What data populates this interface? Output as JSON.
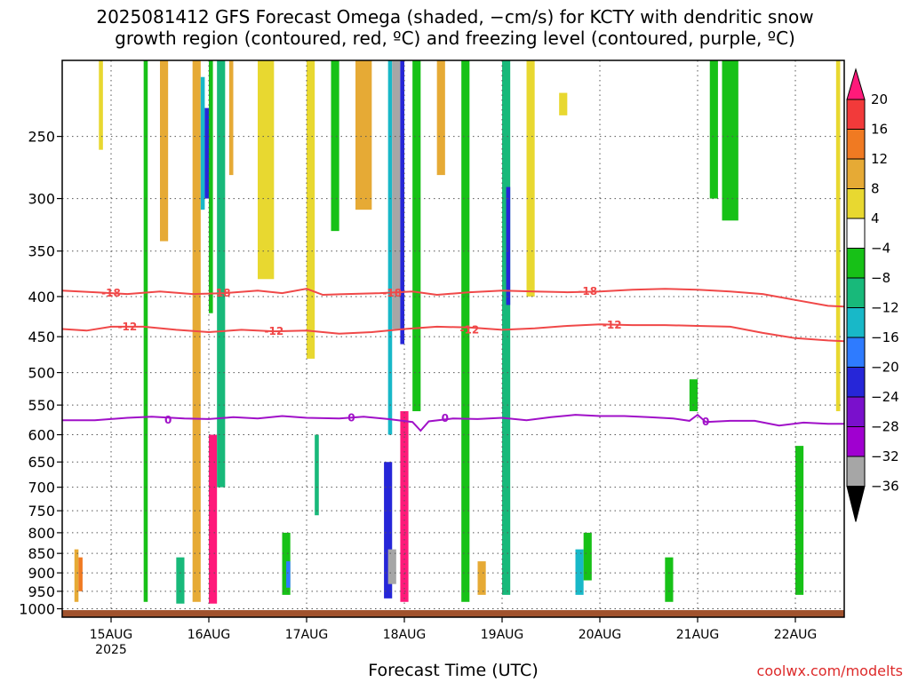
{
  "title": {
    "line1": "2025081412 GFS Forecast Omega (shaded, −cm/s) for KCTY with dendritic snow",
    "line2": "growth region (contoured, red, ºC) and freezing level (contoured, purple, ºC)"
  },
  "credit": "coolwx.com/modelts",
  "chart_data": {
    "type": "heatmap",
    "xlabel": "Forecast Time (UTC)",
    "ylabel": "",
    "x_ticks": [
      "15AUG",
      "16AUG",
      "17AUG",
      "18AUG",
      "19AUG",
      "20AUG",
      "21AUG",
      "22AUG"
    ],
    "x_year": "2025",
    "xlim_hours": [
      -12,
      180
    ],
    "y_ticks": [
      250,
      300,
      350,
      400,
      450,
      500,
      550,
      600,
      650,
      700,
      750,
      800,
      850,
      900,
      950,
      1000
    ],
    "ylim_hPa": [
      200,
      1025
    ],
    "grid": true,
    "colorbar": {
      "labels": [
        "20",
        "16",
        "12",
        "8",
        "4",
        "−4",
        "−8",
        "−12",
        "−16",
        "−20",
        "−24",
        "−28",
        "−32",
        "−36"
      ],
      "colors": [
        "#ff1a7a",
        "#f23a3a",
        "#f07a22",
        "#e6aa35",
        "#e8d830",
        "#ffffff",
        "#17c117",
        "#18b97a",
        "#18b8c8",
        "#2e7bff",
        "#2626d8",
        "#7a10cc",
        "#a000d0",
        "#a6a6a6",
        "#000000"
      ]
    },
    "contours": [
      {
        "label": "-18",
        "color": "#f04848",
        "label_positions": [
          [
            0,
            396
          ],
          [
            27,
            396
          ],
          [
            69,
            396
          ],
          [
            117,
            394
          ]
        ],
        "points": [
          [
            -12,
            393
          ],
          [
            -4,
            395
          ],
          [
            4,
            397
          ],
          [
            12,
            394
          ],
          [
            20,
            397
          ],
          [
            28,
            396
          ],
          [
            36,
            393
          ],
          [
            42,
            396
          ],
          [
            48,
            391
          ],
          [
            52,
            398
          ],
          [
            58,
            397
          ],
          [
            66,
            396
          ],
          [
            74,
            394
          ],
          [
            80,
            398
          ],
          [
            88,
            395
          ],
          [
            96,
            393
          ],
          [
            104,
            394
          ],
          [
            112,
            395
          ],
          [
            120,
            394
          ],
          [
            128,
            392
          ],
          [
            136,
            391
          ],
          [
            144,
            392
          ],
          [
            152,
            394
          ],
          [
            160,
            397
          ],
          [
            168,
            404
          ],
          [
            176,
            411
          ],
          [
            180,
            412
          ]
        ]
      },
      {
        "label": "-12",
        "color": "#f04848",
        "label_positions": [
          [
            4,
            437
          ],
          [
            40,
            443
          ],
          [
            88,
            441
          ],
          [
            123,
            435
          ]
        ],
        "points": [
          [
            -12,
            440
          ],
          [
            -6,
            442
          ],
          [
            0,
            437
          ],
          [
            8,
            437
          ],
          [
            16,
            441
          ],
          [
            24,
            444
          ],
          [
            32,
            441
          ],
          [
            40,
            443
          ],
          [
            48,
            442
          ],
          [
            56,
            446
          ],
          [
            64,
            444
          ],
          [
            72,
            440
          ],
          [
            80,
            437
          ],
          [
            88,
            438
          ],
          [
            96,
            441
          ],
          [
            104,
            439
          ],
          [
            112,
            436
          ],
          [
            120,
            434
          ],
          [
            128,
            435
          ],
          [
            136,
            435
          ],
          [
            144,
            436
          ],
          [
            152,
            437
          ],
          [
            160,
            445
          ],
          [
            168,
            452
          ],
          [
            176,
            455
          ],
          [
            180,
            456
          ]
        ]
      },
      {
        "label": "0",
        "color": "#a010c8",
        "label_positions": [
          [
            14,
            575
          ],
          [
            59,
            571
          ],
          [
            82,
            572
          ],
          [
            146,
            578
          ]
        ],
        "points": [
          [
            -12,
            575
          ],
          [
            -4,
            575
          ],
          [
            4,
            571
          ],
          [
            10,
            569
          ],
          [
            18,
            572
          ],
          [
            24,
            573
          ],
          [
            30,
            570
          ],
          [
            36,
            572
          ],
          [
            42,
            568
          ],
          [
            48,
            571
          ],
          [
            56,
            572
          ],
          [
            62,
            569
          ],
          [
            68,
            573
          ],
          [
            74,
            578
          ],
          [
            76,
            593
          ],
          [
            78,
            577
          ],
          [
            84,
            572
          ],
          [
            90,
            573
          ],
          [
            96,
            571
          ],
          [
            102,
            575
          ],
          [
            108,
            570
          ],
          [
            114,
            566
          ],
          [
            120,
            568
          ],
          [
            126,
            568
          ],
          [
            132,
            570
          ],
          [
            138,
            572
          ],
          [
            142,
            576
          ],
          [
            144,
            566
          ],
          [
            146,
            578
          ],
          [
            152,
            576
          ],
          [
            158,
            576
          ],
          [
            164,
            584
          ],
          [
            170,
            579
          ],
          [
            176,
            581
          ],
          [
            180,
            581
          ]
        ]
      }
    ],
    "shaded_features": [
      {
        "x_hours": [
          -9,
          -8
        ],
        "p_hPa": [
          840,
          980
        ],
        "omega": 8
      },
      {
        "x_hours": [
          -8,
          -7
        ],
        "p_hPa": [
          860,
          950
        ],
        "omega": 12
      },
      {
        "x_hours": [
          -3,
          -2
        ],
        "p_hPa": [
          200,
          260
        ],
        "omega": 4
      },
      {
        "x_hours": [
          8,
          9
        ],
        "p_hPa": [
          200,
          980
        ],
        "omega": -8
      },
      {
        "x_hours": [
          12,
          14
        ],
        "p_hPa": [
          200,
          340
        ],
        "omega": 8
      },
      {
        "x_hours": [
          16,
          18
        ],
        "p_hPa": [
          860,
          985
        ],
        "omega": -12
      },
      {
        "x_hours": [
          20,
          22
        ],
        "p_hPa": [
          200,
          980
        ],
        "omega": 8
      },
      {
        "x_hours": [
          22,
          23
        ],
        "p_hPa": [
          210,
          310
        ],
        "omega": -16
      },
      {
        "x_hours": [
          23,
          24
        ],
        "p_hPa": [
          230,
          300
        ],
        "omega": -24
      },
      {
        "x_hours": [
          24,
          25
        ],
        "p_hPa": [
          200,
          420
        ],
        "omega": -8
      },
      {
        "x_hours": [
          24,
          26
        ],
        "p_hPa": [
          600,
          985
        ],
        "omega": 20
      },
      {
        "x_hours": [
          26,
          28
        ],
        "p_hPa": [
          200,
          700
        ],
        "omega": -12
      },
      {
        "x_hours": [
          29,
          30
        ],
        "p_hPa": [
          200,
          280
        ],
        "omega": 8
      },
      {
        "x_hours": [
          36,
          40
        ],
        "p_hPa": [
          200,
          380
        ],
        "omega": 4
      },
      {
        "x_hours": [
          42,
          44
        ],
        "p_hPa": [
          800,
          960
        ],
        "omega": -8
      },
      {
        "x_hours": [
          43,
          44
        ],
        "p_hPa": [
          870,
          940
        ],
        "omega": -20
      },
      {
        "x_hours": [
          48,
          50
        ],
        "p_hPa": [
          200,
          480
        ],
        "omega": 4
      },
      {
        "x_hours": [
          50,
          51
        ],
        "p_hPa": [
          600,
          760
        ],
        "omega": -12
      },
      {
        "x_hours": [
          54,
          56
        ],
        "p_hPa": [
          200,
          330
        ],
        "omega": -8
      },
      {
        "x_hours": [
          60,
          64
        ],
        "p_hPa": [
          200,
          310
        ],
        "omega": 8
      },
      {
        "x_hours": [
          68,
          69
        ],
        "p_hPa": [
          200,
          600
        ],
        "omega": -16
      },
      {
        "x_hours": [
          69,
          71
        ],
        "p_hPa": [
          200,
          440
        ],
        "omega": -36
      },
      {
        "x_hours": [
          71,
          72
        ],
        "p_hPa": [
          200,
          460
        ],
        "omega": -24
      },
      {
        "x_hours": [
          67,
          69
        ],
        "p_hPa": [
          650,
          970
        ],
        "omega": -24
      },
      {
        "x_hours": [
          68,
          70
        ],
        "p_hPa": [
          840,
          930
        ],
        "omega": -36
      },
      {
        "x_hours": [
          71,
          73
        ],
        "p_hPa": [
          560,
          980
        ],
        "omega": 20
      },
      {
        "x_hours": [
          74,
          76
        ],
        "p_hPa": [
          200,
          560
        ],
        "omega": -8
      },
      {
        "x_hours": [
          80,
          82
        ],
        "p_hPa": [
          200,
          280
        ],
        "omega": 8
      },
      {
        "x_hours": [
          86,
          88
        ],
        "p_hPa": [
          200,
          980
        ],
        "omega": -8
      },
      {
        "x_hours": [
          90,
          92
        ],
        "p_hPa": [
          870,
          960
        ],
        "omega": 8
      },
      {
        "x_hours": [
          96,
          98
        ],
        "p_hPa": [
          200,
          960
        ],
        "omega": -12
      },
      {
        "x_hours": [
          97,
          98
        ],
        "p_hPa": [
          290,
          410
        ],
        "omega": -24
      },
      {
        "x_hours": [
          102,
          104
        ],
        "p_hPa": [
          200,
          400
        ],
        "omega": 4
      },
      {
        "x_hours": [
          110,
          112
        ],
        "p_hPa": [
          220,
          235
        ],
        "omega": 4
      },
      {
        "x_hours": [
          114,
          116
        ],
        "p_hPa": [
          840,
          960
        ],
        "omega": -16
      },
      {
        "x_hours": [
          116,
          118
        ],
        "p_hPa": [
          800,
          920
        ],
        "omega": -8
      },
      {
        "x_hours": [
          136,
          138
        ],
        "p_hPa": [
          860,
          980
        ],
        "omega": -8
      },
      {
        "x_hours": [
          142,
          144
        ],
        "p_hPa": [
          510,
          560
        ],
        "omega": -8
      },
      {
        "x_hours": [
          147,
          149
        ],
        "p_hPa": [
          200,
          300
        ],
        "omega": -8
      },
      {
        "x_hours": [
          150,
          154
        ],
        "p_hPa": [
          200,
          320
        ],
        "omega": -8
      },
      {
        "x_hours": [
          168,
          170
        ],
        "p_hPa": [
          620,
          960
        ],
        "omega": -8
      },
      {
        "x_hours": [
          178,
          179
        ],
        "p_hPa": [
          200,
          560
        ],
        "omega": 4
      }
    ],
    "surface_color": "#a0522d"
  }
}
